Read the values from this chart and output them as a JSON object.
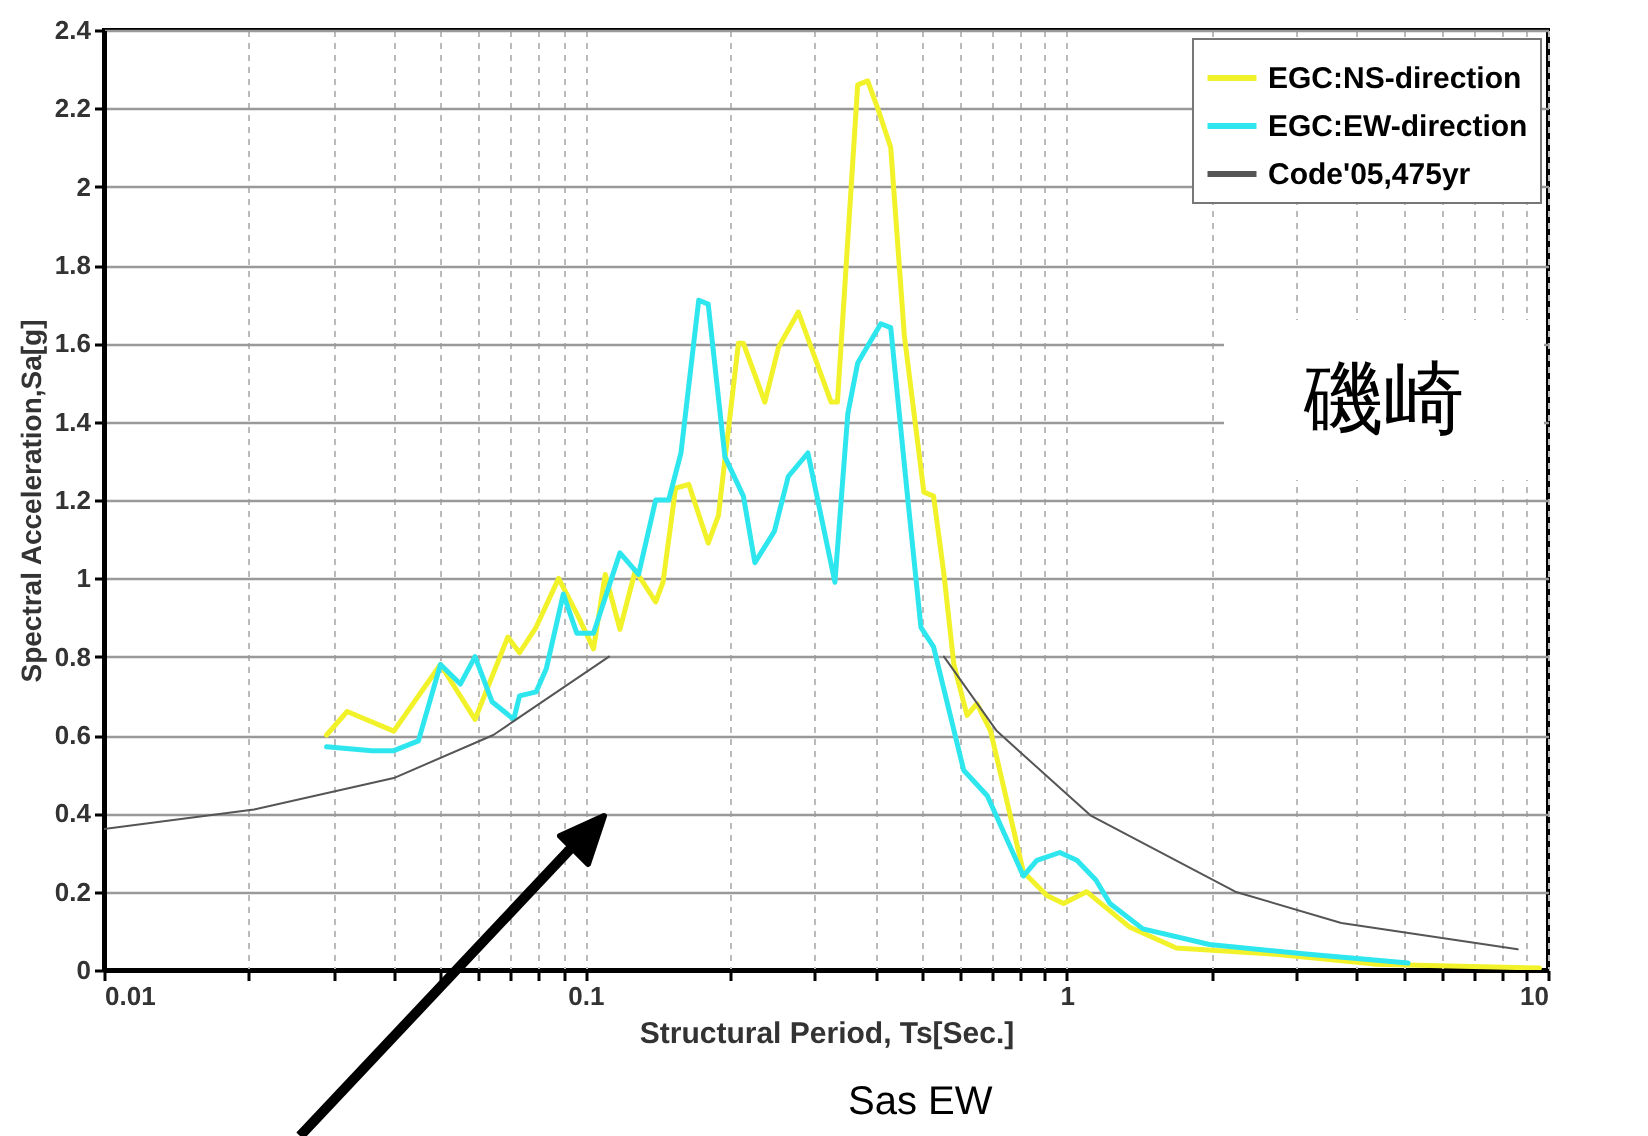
{
  "chart_data": {
    "type": "line",
    "xlabel": "Structural Period, Ts[Sec.]",
    "ylabel": "Spectral Acceleration,Sa[g]",
    "log": "x",
    "grid": true,
    "legend": "top right",
    "marker": "none",
    "line_style": "solid",
    "xlim": [
      0.01,
      10
    ],
    "ylim": [
      0,
      2.4
    ],
    "xticks": [
      0.01,
      {
        "value": 0.02,
        "label": null
      },
      {
        "value": 0.03,
        "label": null
      },
      {
        "value": 0.04,
        "label": null
      },
      {
        "value": 0.05,
        "label": null
      },
      {
        "value": 0.06,
        "label": null
      },
      {
        "value": 0.07,
        "label": null
      },
      {
        "value": 0.08,
        "label": null
      },
      {
        "value": 0.09,
        "label": null
      },
      0.1,
      {
        "value": 0.2,
        "label": null
      },
      {
        "value": 0.3,
        "label": null
      },
      {
        "value": 0.4,
        "label": null
      },
      {
        "value": 0.5,
        "label": null
      },
      {
        "value": 0.6,
        "label": null
      },
      {
        "value": 0.7,
        "label": null
      },
      {
        "value": 0.8,
        "label": null
      },
      {
        "value": 0.9,
        "label": null
      },
      1,
      {
        "value": 2,
        "label": null
      },
      {
        "value": 3,
        "label": null
      },
      {
        "value": 4,
        "label": null
      },
      {
        "value": 5,
        "label": null
      },
      {
        "value": 6,
        "label": null
      },
      {
        "value": 7,
        "label": null
      },
      {
        "value": 8,
        "label": null
      },
      {
        "value": 9,
        "label": null
      },
      10
    ],
    "yticks": [
      0,
      0.2,
      0.4,
      0.6,
      0.8,
      1,
      1.2,
      1.4,
      1.6,
      1.8,
      2,
      2.2,
      2.4
    ],
    "annotations": [
      "磯崎",
      "Sas  EW"
    ],
    "series": [
      {
        "name": "EGC:NS-direction",
        "color": "#f2f22a",
        "x": [
          0.029,
          0.032,
          0.04,
          0.05,
          0.059,
          0.069,
          0.073,
          0.079,
          0.088,
          0.096,
          0.104,
          0.11,
          0.118,
          0.127,
          0.14,
          0.145,
          0.154,
          0.164,
          0.18,
          0.189,
          0.208,
          0.213,
          0.236,
          0.252,
          0.277,
          0.324,
          0.334,
          0.368,
          0.386,
          0.405,
          0.431,
          0.46,
          0.505,
          0.529,
          0.556,
          0.583,
          0.621,
          0.651,
          0.695,
          0.813,
          0.91,
          0.985,
          1.1,
          1.35,
          1.69,
          2.72,
          4.37,
          9.6
        ],
        "values": [
          0.6,
          0.66,
          0.61,
          0.78,
          0.64,
          0.85,
          0.81,
          0.875,
          1.0,
          0.91,
          0.82,
          1.01,
          0.87,
          1.02,
          0.94,
          0.99,
          1.23,
          1.24,
          1.09,
          1.16,
          1.6,
          1.6,
          1.45,
          1.59,
          1.68,
          1.45,
          1.45,
          2.26,
          2.27,
          2.2,
          2.1,
          1.62,
          1.22,
          1.21,
          1.01,
          0.78,
          0.65,
          0.68,
          0.61,
          0.25,
          0.19,
          0.17,
          0.2,
          0.11,
          0.056,
          0.04,
          0.015,
          0.005
        ]
      },
      {
        "name": "EGC:EW-direction",
        "color": "#2ee6ee",
        "x": [
          0.029,
          0.036,
          0.04,
          0.045,
          0.05,
          0.055,
          0.059,
          0.064,
          0.071,
          0.073,
          0.079,
          0.083,
          0.09,
          0.096,
          0.104,
          0.118,
          0.129,
          0.14,
          0.149,
          0.158,
          0.172,
          0.18,
          0.195,
          0.213,
          0.225,
          0.247,
          0.264,
          0.29,
          0.33,
          0.351,
          0.368,
          0.411,
          0.431,
          0.467,
          0.498,
          0.529,
          0.611,
          0.684,
          0.813,
          0.867,
          0.968,
          1.05,
          1.15,
          1.23,
          1.44,
          1.98,
          3.18,
          5.12
        ],
        "values": [
          0.57,
          0.56,
          0.56,
          0.585,
          0.78,
          0.73,
          0.8,
          0.685,
          0.64,
          0.7,
          0.71,
          0.77,
          0.96,
          0.86,
          0.86,
          1.065,
          1.01,
          1.2,
          1.2,
          1.32,
          1.71,
          1.7,
          1.31,
          1.21,
          1.04,
          1.12,
          1.26,
          1.32,
          0.99,
          1.42,
          1.55,
          1.65,
          1.64,
          1.21,
          0.875,
          0.825,
          0.51,
          0.445,
          0.24,
          0.28,
          0.3,
          0.28,
          0.23,
          0.17,
          0.105,
          0.065,
          0.04,
          0.018
        ]
      },
      {
        "name": "Code'05,475yr",
        "color": "#555555",
        "x": [
          0.01,
          0.0205,
          0.04,
          0.0644,
          0.112,
          0.3,
          0.556,
          0.716,
          1.12,
          2.24,
          3.72,
          8.65
        ],
        "values": [
          0.36,
          0.41,
          0.49,
          0.6,
          0.8,
          null,
          0.8,
          0.61,
          0.395,
          0.2,
          0.12,
          0.053
        ]
      }
    ]
  }
}
